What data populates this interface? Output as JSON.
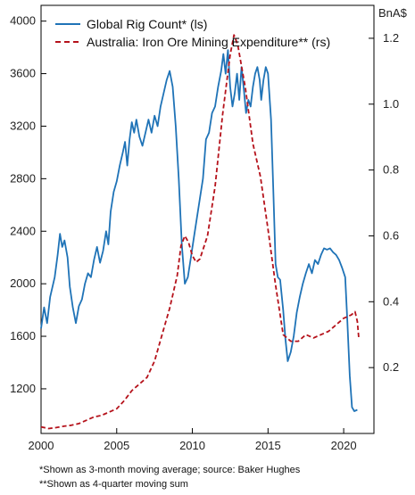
{
  "chart_data": {
    "type": "line",
    "right_unit_label": "BnA$",
    "x_ticks": [
      2000,
      2005,
      2010,
      2015,
      2020
    ],
    "xlim": [
      2000,
      2022
    ],
    "y_left": {
      "ticks": [
        1200,
        1600,
        2000,
        2400,
        2800,
        3200,
        3600,
        4000
      ],
      "ylim": [
        860,
        4120
      ]
    },
    "y_right": {
      "ticks": [
        0.2,
        0.4,
        0.6,
        0.8,
        1.0,
        1.2
      ],
      "tick_labels": [
        "0.2",
        "0.4",
        "0.6",
        "0.8",
        "1.0",
        "1.2"
      ],
      "ylim": [
        0.0,
        1.3
      ]
    },
    "grid": false,
    "legend_position": "top-left",
    "series": [
      {
        "name": "Global Rig Count* (ls)",
        "axis": "left",
        "color": "#1f73b7",
        "style": "solid",
        "points": [
          [
            2000.0,
            1660
          ],
          [
            2000.2,
            1820
          ],
          [
            2000.4,
            1700
          ],
          [
            2000.6,
            1900
          ],
          [
            2000.9,
            2050
          ],
          [
            2001.1,
            2220
          ],
          [
            2001.25,
            2380
          ],
          [
            2001.4,
            2280
          ],
          [
            2001.55,
            2330
          ],
          [
            2001.75,
            2200
          ],
          [
            2001.9,
            1980
          ],
          [
            2002.1,
            1820
          ],
          [
            2002.3,
            1700
          ],
          [
            2002.5,
            1830
          ],
          [
            2002.7,
            1880
          ],
          [
            2002.9,
            2000
          ],
          [
            2003.1,
            2080
          ],
          [
            2003.3,
            2050
          ],
          [
            2003.5,
            2180
          ],
          [
            2003.7,
            2280
          ],
          [
            2003.9,
            2160
          ],
          [
            2004.1,
            2250
          ],
          [
            2004.3,
            2400
          ],
          [
            2004.45,
            2300
          ],
          [
            2004.6,
            2550
          ],
          [
            2004.8,
            2700
          ],
          [
            2005.0,
            2780
          ],
          [
            2005.2,
            2900
          ],
          [
            2005.4,
            3000
          ],
          [
            2005.55,
            3080
          ],
          [
            2005.7,
            2900
          ],
          [
            2005.85,
            3100
          ],
          [
            2006.0,
            3230
          ],
          [
            2006.15,
            3150
          ],
          [
            2006.3,
            3250
          ],
          [
            2006.5,
            3120
          ],
          [
            2006.7,
            3050
          ],
          [
            2006.9,
            3150
          ],
          [
            2007.1,
            3250
          ],
          [
            2007.3,
            3150
          ],
          [
            2007.5,
            3280
          ],
          [
            2007.7,
            3200
          ],
          [
            2007.9,
            3350
          ],
          [
            2008.1,
            3450
          ],
          [
            2008.3,
            3550
          ],
          [
            2008.5,
            3620
          ],
          [
            2008.7,
            3500
          ],
          [
            2008.9,
            3200
          ],
          [
            2009.1,
            2800
          ],
          [
            2009.3,
            2300
          ],
          [
            2009.5,
            2000
          ],
          [
            2009.7,
            2050
          ],
          [
            2009.9,
            2200
          ],
          [
            2010.1,
            2350
          ],
          [
            2010.3,
            2500
          ],
          [
            2010.5,
            2650
          ],
          [
            2010.7,
            2800
          ],
          [
            2010.9,
            3100
          ],
          [
            2011.1,
            3150
          ],
          [
            2011.3,
            3300
          ],
          [
            2011.5,
            3350
          ],
          [
            2011.7,
            3500
          ],
          [
            2011.9,
            3620
          ],
          [
            2012.05,
            3750
          ],
          [
            2012.2,
            3600
          ],
          [
            2012.35,
            3780
          ],
          [
            2012.5,
            3500
          ],
          [
            2012.65,
            3350
          ],
          [
            2012.8,
            3450
          ],
          [
            2012.95,
            3600
          ],
          [
            2013.1,
            3400
          ],
          [
            2013.25,
            3650
          ],
          [
            2013.4,
            3480
          ],
          [
            2013.55,
            3300
          ],
          [
            2013.7,
            3400
          ],
          [
            2013.85,
            3350
          ],
          [
            2014.0,
            3500
          ],
          [
            2014.15,
            3600
          ],
          [
            2014.3,
            3650
          ],
          [
            2014.45,
            3550
          ],
          [
            2014.55,
            3400
          ],
          [
            2014.7,
            3550
          ],
          [
            2014.85,
            3650
          ],
          [
            2015.0,
            3600
          ],
          [
            2015.2,
            3250
          ],
          [
            2015.35,
            2700
          ],
          [
            2015.5,
            2150
          ],
          [
            2015.65,
            2050
          ],
          [
            2015.8,
            2030
          ],
          [
            2016.0,
            1800
          ],
          [
            2016.15,
            1580
          ],
          [
            2016.3,
            1410
          ],
          [
            2016.5,
            1480
          ],
          [
            2016.7,
            1600
          ],
          [
            2016.9,
            1780
          ],
          [
            2017.1,
            1900
          ],
          [
            2017.3,
            2000
          ],
          [
            2017.5,
            2080
          ],
          [
            2017.7,
            2150
          ],
          [
            2017.9,
            2080
          ],
          [
            2018.1,
            2180
          ],
          [
            2018.3,
            2150
          ],
          [
            2018.5,
            2220
          ],
          [
            2018.7,
            2270
          ],
          [
            2018.9,
            2260
          ],
          [
            2019.1,
            2270
          ],
          [
            2019.3,
            2240
          ],
          [
            2019.5,
            2220
          ],
          [
            2019.7,
            2180
          ],
          [
            2019.9,
            2120
          ],
          [
            2020.1,
            2050
          ],
          [
            2020.25,
            1700
          ],
          [
            2020.4,
            1300
          ],
          [
            2020.55,
            1060
          ],
          [
            2020.7,
            1030
          ],
          [
            2020.9,
            1040
          ]
        ]
      },
      {
        "name": "Australia: Iron Ore Mining Expenditure** (rs)",
        "axis": "right",
        "color": "#b5121b",
        "style": "dashed",
        "points": [
          [
            2000.0,
            0.02
          ],
          [
            2000.5,
            0.015
          ],
          [
            2001.0,
            0.018
          ],
          [
            2001.5,
            0.022
          ],
          [
            2002.0,
            0.025
          ],
          [
            2002.5,
            0.03
          ],
          [
            2003.0,
            0.04
          ],
          [
            2003.5,
            0.05
          ],
          [
            2004.0,
            0.055
          ],
          [
            2004.5,
            0.065
          ],
          [
            2005.0,
            0.075
          ],
          [
            2005.5,
            0.1
          ],
          [
            2006.0,
            0.13
          ],
          [
            2006.5,
            0.15
          ],
          [
            2007.0,
            0.17
          ],
          [
            2007.5,
            0.22
          ],
          [
            2008.0,
            0.3
          ],
          [
            2008.5,
            0.38
          ],
          [
            2009.0,
            0.48
          ],
          [
            2009.25,
            0.57
          ],
          [
            2009.5,
            0.6
          ],
          [
            2009.75,
            0.58
          ],
          [
            2010.0,
            0.54
          ],
          [
            2010.25,
            0.52
          ],
          [
            2010.5,
            0.53
          ],
          [
            2011.0,
            0.6
          ],
          [
            2011.5,
            0.75
          ],
          [
            2012.0,
            0.97
          ],
          [
            2012.5,
            1.15
          ],
          [
            2012.75,
            1.21
          ],
          [
            2013.0,
            1.18
          ],
          [
            2013.5,
            1.05
          ],
          [
            2014.0,
            0.88
          ],
          [
            2014.5,
            0.78
          ],
          [
            2015.0,
            0.62
          ],
          [
            2015.5,
            0.45
          ],
          [
            2016.0,
            0.3
          ],
          [
            2016.5,
            0.28
          ],
          [
            2017.0,
            0.28
          ],
          [
            2017.5,
            0.3
          ],
          [
            2018.0,
            0.29
          ],
          [
            2018.5,
            0.3
          ],
          [
            2019.0,
            0.31
          ],
          [
            2019.5,
            0.33
          ],
          [
            2020.0,
            0.35
          ],
          [
            2020.5,
            0.36
          ],
          [
            2020.75,
            0.37
          ],
          [
            2020.9,
            0.34
          ],
          [
            2021.0,
            0.29
          ]
        ]
      }
    ]
  },
  "notes": {
    "line1": "*Shown as 3-month moving average; source: Baker Hughes",
    "line2": "**Shown as 4-quarter moving sum"
  }
}
